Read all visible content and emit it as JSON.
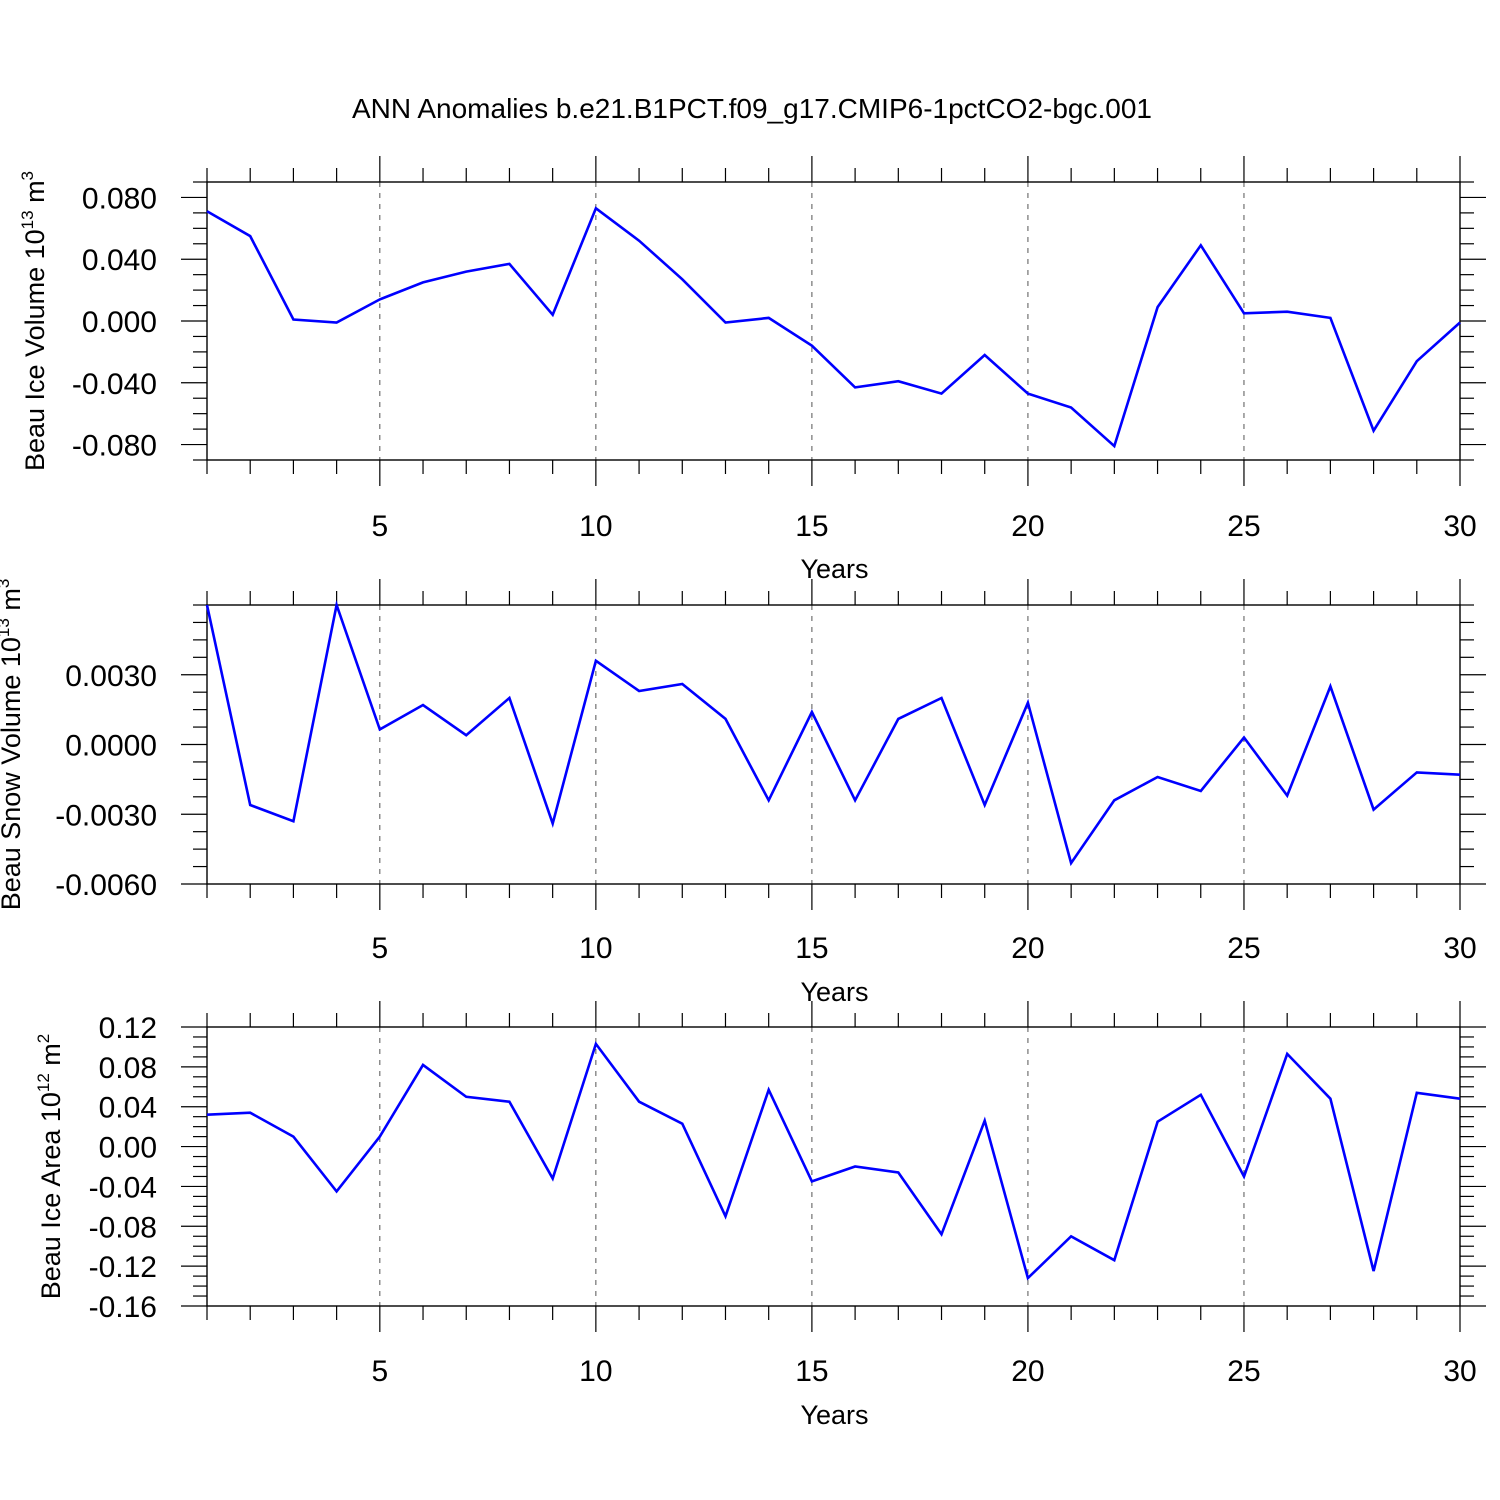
{
  "figure": {
    "title": "ANN Anomalies b.e21.B1PCT.f09_g17.CMIP6-1pctCO2-bgc.001"
  },
  "style": {
    "line_color": "#0000ff",
    "frame_color": "#000000",
    "grid_color": "#555555"
  },
  "chart_data": [
    {
      "type": "line",
      "title": "",
      "xlabel": "Years",
      "ylabel": {
        "text": "Beau Ice Volume 10",
        "exponent": "13",
        "unit": "m",
        "unit_exponent": "3"
      },
      "xlim": [
        1,
        30
      ],
      "ylim": [
        -0.09,
        0.09
      ],
      "xticks": [
        5,
        10,
        15,
        20,
        25,
        30
      ],
      "yticks": [
        0.08,
        0.04,
        0.0,
        -0.04,
        -0.08
      ],
      "ytick_labels": [
        "0.080",
        "0.040",
        "0.000",
        "-0.040",
        "-0.080"
      ],
      "grid": "vertical dashed lines at labeled x ticks",
      "x": [
        1,
        2,
        3,
        4,
        5,
        6,
        7,
        8,
        9,
        10,
        11,
        12,
        13,
        14,
        15,
        16,
        17,
        18,
        19,
        20,
        21,
        22,
        23,
        24,
        25,
        26,
        27,
        28,
        29,
        30
      ],
      "series": [
        {
          "color": "#0000ff",
          "values": [
            0.071,
            0.055,
            0.001,
            -0.001,
            0.014,
            0.025,
            0.032,
            0.037,
            0.004,
            0.073,
            0.052,
            0.027,
            -0.001,
            0.002,
            -0.016,
            -0.043,
            -0.039,
            -0.047,
            -0.022,
            -0.047,
            -0.056,
            -0.081,
            0.009,
            0.049,
            0.005,
            0.006,
            0.002,
            -0.071,
            -0.026,
            -0.001
          ]
        }
      ]
    },
    {
      "type": "line",
      "title": "",
      "xlabel": "Years",
      "ylabel": {
        "text": "Beau Snow Volume 10",
        "exponent": "13",
        "unit": "m",
        "unit_exponent": "3"
      },
      "xlim": [
        1,
        30
      ],
      "ylim": [
        -0.006,
        0.006
      ],
      "xticks": [
        5,
        10,
        15,
        20,
        25,
        30
      ],
      "yticks": [
        0.003,
        0.0,
        -0.003,
        -0.006
      ],
      "ytick_labels": [
        "0.0030",
        "0.0000",
        "-0.0030",
        "-0.0060"
      ],
      "grid": "vertical dashed lines at labeled x ticks",
      "x": [
        1,
        2,
        3,
        4,
        5,
        6,
        7,
        8,
        9,
        10,
        11,
        12,
        13,
        14,
        15,
        16,
        17,
        18,
        19,
        20,
        21,
        22,
        23,
        24,
        25,
        26,
        27,
        28,
        29,
        30
      ],
      "series": [
        {
          "color": "#0000ff",
          "values": [
            0.006,
            -0.0026,
            -0.0033,
            0.006,
            0.00065,
            0.0017,
            0.0004,
            0.002,
            -0.0034,
            0.0036,
            0.0023,
            0.0026,
            0.0011,
            -0.0024,
            0.0014,
            -0.0024,
            0.0011,
            0.002,
            -0.0026,
            0.0018,
            -0.0051,
            -0.0024,
            -0.0014,
            -0.002,
            0.0003,
            -0.0022,
            0.0025,
            -0.0028,
            -0.0012,
            -0.0013
          ]
        }
      ]
    },
    {
      "type": "line",
      "title": "",
      "xlabel": "Years",
      "ylabel": {
        "text": "Beau Ice Area 10",
        "exponent": "12",
        "unit": "m",
        "unit_exponent": "2"
      },
      "xlim": [
        1,
        30
      ],
      "ylim": [
        -0.16,
        0.12
      ],
      "xticks": [
        5,
        10,
        15,
        20,
        25,
        30
      ],
      "yticks": [
        0.12,
        0.08,
        0.04,
        0.0,
        -0.04,
        -0.08,
        -0.12,
        -0.16
      ],
      "ytick_labels": [
        "0.12",
        "0.08",
        "0.04",
        "0.00",
        "-0.04",
        "-0.08",
        "-0.12",
        "-0.16"
      ],
      "grid": "vertical dashed lines at labeled x ticks",
      "x": [
        1,
        2,
        3,
        4,
        5,
        6,
        7,
        8,
        9,
        10,
        11,
        12,
        13,
        14,
        15,
        16,
        17,
        18,
        19,
        20,
        21,
        22,
        23,
        24,
        25,
        26,
        27,
        28,
        29,
        30
      ],
      "series": [
        {
          "color": "#0000ff",
          "values": [
            0.032,
            0.034,
            0.01,
            -0.045,
            0.01,
            0.082,
            0.05,
            0.045,
            -0.032,
            0.103,
            0.045,
            0.023,
            -0.07,
            0.057,
            -0.035,
            -0.02,
            -0.026,
            -0.088,
            0.026,
            -0.132,
            -0.09,
            -0.114,
            0.025,
            0.052,
            -0.03,
            0.093,
            0.048,
            -0.125,
            0.054,
            0.048
          ]
        }
      ]
    }
  ]
}
